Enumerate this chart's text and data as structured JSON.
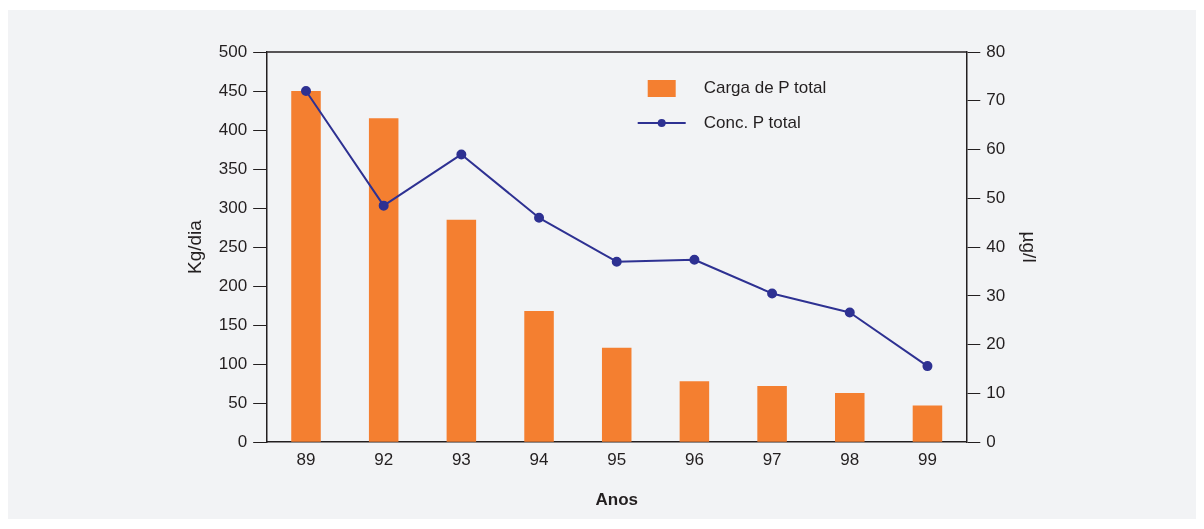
{
  "chart_data": {
    "type": "bar",
    "xlabel": "Anos",
    "ylabel": "Kg/dia",
    "y2label": "µg/l",
    "categories": [
      "89",
      "92",
      "93",
      "94",
      "95",
      "96",
      "97",
      "98",
      "99"
    ],
    "series": [
      {
        "name": "Carga de P total",
        "color": "#f47f30",
        "values": [
          450,
          415,
          285,
          168,
          121,
          78,
          72,
          63,
          47
        ]
      },
      {
        "name": "Conc. P total",
        "type": "line",
        "axis": "y2",
        "color": "#2e3192",
        "values": [
          72,
          48.5,
          59,
          46,
          37,
          37.4,
          30.5,
          26.6,
          15.6
        ]
      }
    ],
    "ylim": [
      0,
      500
    ],
    "yticks": [
      0,
      50,
      100,
      150,
      200,
      250,
      300,
      350,
      400,
      450,
      500
    ],
    "y2lim": [
      0,
      80
    ],
    "y2ticks": [
      0,
      10,
      20,
      30,
      40,
      50,
      60,
      70,
      80
    ],
    "legend": "top right",
    "marker": "circle",
    "line_style": "solid",
    "grid": false
  }
}
